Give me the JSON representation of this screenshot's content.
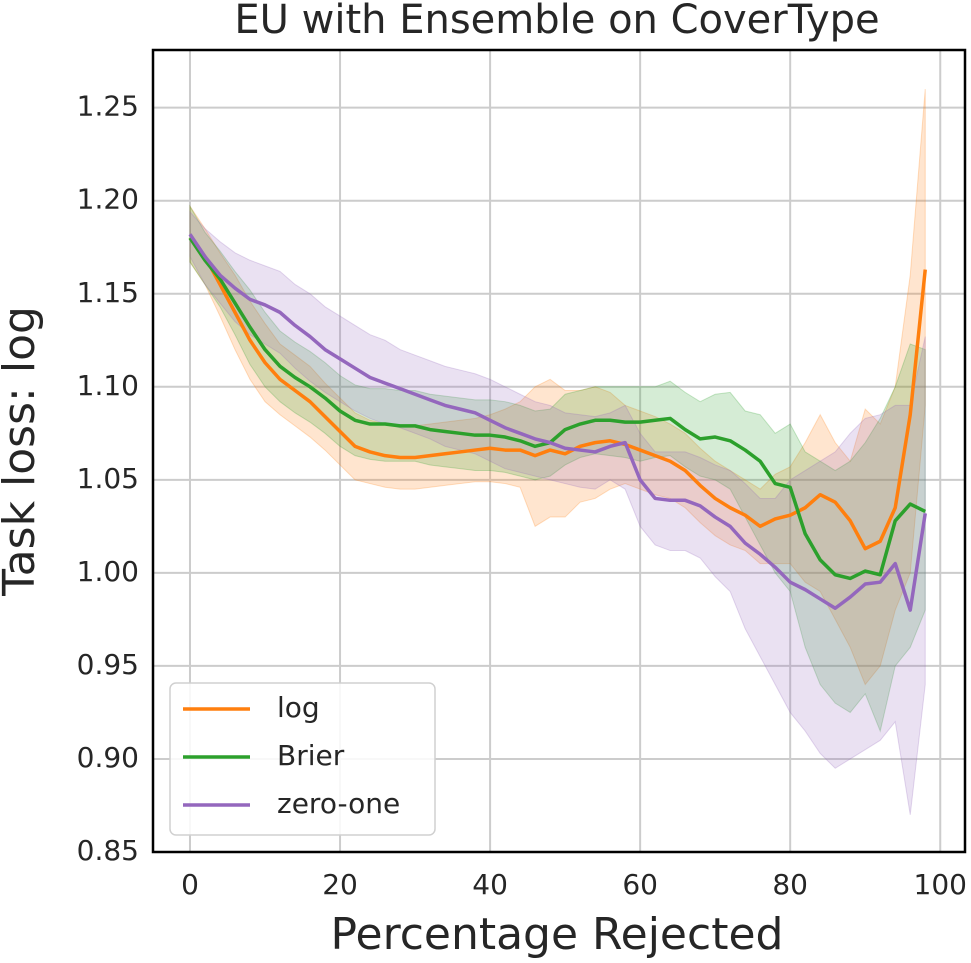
{
  "chart_data": {
    "type": "line",
    "title": "EU with Ensemble on CoverType",
    "xlabel": "Percentage Rejected",
    "ylabel": "Task loss: log",
    "xlim": [
      -4.93,
      103.3
    ],
    "ylim": [
      0.85,
      1.281
    ],
    "xticks": [
      0,
      20,
      40,
      60,
      80,
      100
    ],
    "yticks": [
      0.85,
      {
        "value": 0.9,
        "label": "0.90"
      },
      0.95,
      {
        "value": 1,
        "label": "1.00"
      },
      1.05,
      {
        "value": 1.1,
        "label": "1.10"
      },
      1.15,
      {
        "value": 1.2,
        "label": "1.20"
      },
      1.25
    ],
    "grid": true,
    "legend": "lower left",
    "x": [
      0,
      2,
      4,
      6,
      8,
      10,
      12,
      14,
      16,
      18,
      20,
      22,
      24,
      26,
      28,
      30,
      32,
      34,
      36,
      38,
      40,
      42,
      44,
      46,
      48,
      50,
      52,
      54,
      56,
      58,
      60,
      62,
      64,
      66,
      68,
      70,
      72,
      74,
      76,
      78,
      80,
      82,
      84,
      86,
      88,
      90,
      92,
      94,
      96,
      98
    ],
    "series": [
      {
        "name": "log",
        "color": "#ff7f0e",
        "values": [
          1.18,
          1.17,
          1.155,
          1.14,
          1.125,
          1.113,
          1.104,
          1.098,
          1.092,
          1.084,
          1.076,
          1.068,
          1.065,
          1.063,
          1.062,
          1.062,
          1.063,
          1.064,
          1.065,
          1.066,
          1.067,
          1.066,
          1.066,
          1.063,
          1.066,
          1.064,
          1.068,
          1.07,
          1.071,
          1.069,
          1.066,
          1.063,
          1.06,
          1.055,
          1.047,
          1.04,
          1.035,
          1.031,
          1.025,
          1.029,
          1.031,
          1.035,
          1.042,
          1.038,
          1.028,
          1.013,
          1.017,
          1.035,
          1.085,
          1.163
        ],
        "lower": [
          1.167,
          1.155,
          1.138,
          1.12,
          1.104,
          1.092,
          1.085,
          1.079,
          1.073,
          1.066,
          1.058,
          1.05,
          1.048,
          1.046,
          1.045,
          1.045,
          1.046,
          1.047,
          1.048,
          1.049,
          1.049,
          1.048,
          1.046,
          1.025,
          1.03,
          1.03,
          1.038,
          1.04,
          1.045,
          1.048,
          1.045,
          1.042,
          1.04,
          1.035,
          1.027,
          1.02,
          1.015,
          1.012,
          1.005,
          1.005,
          1.005,
          0.995,
          0.99,
          0.975,
          0.96,
          0.94,
          0.95,
          0.98,
          1.0,
          1.09
        ],
        "upper": [
          1.197,
          1.185,
          1.172,
          1.16,
          1.146,
          1.134,
          1.123,
          1.117,
          1.111,
          1.102,
          1.094,
          1.086,
          1.082,
          1.08,
          1.079,
          1.079,
          1.08,
          1.081,
          1.082,
          1.083,
          1.085,
          1.088,
          1.092,
          1.1,
          1.104,
          1.098,
          1.098,
          1.1,
          1.097,
          1.09,
          1.087,
          1.084,
          1.08,
          1.075,
          1.067,
          1.06,
          1.055,
          1.05,
          1.045,
          1.053,
          1.057,
          1.07,
          1.085,
          1.07,
          1.06,
          1.088,
          1.08,
          1.1,
          1.16,
          1.26
        ]
      },
      {
        "name": "Brier",
        "color": "#2ca02c",
        "values": [
          1.18,
          1.168,
          1.158,
          1.145,
          1.132,
          1.12,
          1.111,
          1.105,
          1.1,
          1.094,
          1.087,
          1.082,
          1.08,
          1.08,
          1.079,
          1.079,
          1.077,
          1.076,
          1.075,
          1.074,
          1.074,
          1.073,
          1.071,
          1.068,
          1.07,
          1.077,
          1.08,
          1.082,
          1.082,
          1.081,
          1.081,
          1.082,
          1.083,
          1.077,
          1.072,
          1.073,
          1.071,
          1.066,
          1.06,
          1.048,
          1.046,
          1.021,
          1.007,
          0.999,
          0.997,
          1.001,
          0.999,
          1.028,
          1.037,
          1.033
        ],
        "lower": [
          1.167,
          1.155,
          1.143,
          1.128,
          1.112,
          1.1,
          1.092,
          1.086,
          1.081,
          1.075,
          1.068,
          1.063,
          1.061,
          1.06,
          1.06,
          1.06,
          1.058,
          1.057,
          1.056,
          1.055,
          1.055,
          1.054,
          1.052,
          1.05,
          1.052,
          1.058,
          1.062,
          1.064,
          1.063,
          1.062,
          1.06,
          1.062,
          1.063,
          1.057,
          1.052,
          1.05,
          1.045,
          1.03,
          1.015,
          1.0,
          0.99,
          0.96,
          0.94,
          0.93,
          0.925,
          0.935,
          0.915,
          0.95,
          0.96,
          0.98
        ],
        "upper": [
          1.197,
          1.183,
          1.173,
          1.162,
          1.152,
          1.14,
          1.13,
          1.124,
          1.119,
          1.113,
          1.106,
          1.101,
          1.099,
          1.099,
          1.098,
          1.098,
          1.096,
          1.095,
          1.094,
          1.093,
          1.093,
          1.092,
          1.09,
          1.087,
          1.088,
          1.096,
          1.098,
          1.1,
          1.1,
          1.1,
          1.1,
          1.1,
          1.103,
          1.097,
          1.092,
          1.096,
          1.097,
          1.087,
          1.085,
          1.075,
          1.08,
          1.065,
          1.06,
          1.055,
          1.06,
          1.07,
          1.083,
          1.1,
          1.123,
          1.12
        ]
      },
      {
        "name": "zero-one",
        "color": "#9467bd",
        "values": [
          1.182,
          1.17,
          1.16,
          1.153,
          1.147,
          1.144,
          1.14,
          1.133,
          1.127,
          1.12,
          1.115,
          1.11,
          1.105,
          1.102,
          1.099,
          1.096,
          1.093,
          1.09,
          1.088,
          1.086,
          1.082,
          1.078,
          1.075,
          1.072,
          1.07,
          1.067,
          1.066,
          1.065,
          1.068,
          1.07,
          1.05,
          1.04,
          1.039,
          1.039,
          1.036,
          1.03,
          1.025,
          1.016,
          1.01,
          1.003,
          0.995,
          0.991,
          0.986,
          0.981,
          0.987,
          0.994,
          0.995,
          1.005,
          0.98,
          1.032
        ],
        "lower": [
          1.17,
          1.155,
          1.145,
          1.135,
          1.128,
          1.123,
          1.118,
          1.11,
          1.103,
          1.097,
          1.092,
          1.087,
          1.083,
          1.08,
          1.078,
          1.075,
          1.072,
          1.068,
          1.066,
          1.064,
          1.06,
          1.056,
          1.054,
          1.052,
          1.05,
          1.048,
          1.046,
          1.045,
          1.05,
          1.045,
          1.025,
          1.015,
          1.012,
          1.012,
          1.008,
          0.998,
          0.99,
          0.97,
          0.955,
          0.94,
          0.925,
          0.915,
          0.903,
          0.895,
          0.9,
          0.905,
          0.91,
          0.92,
          0.87,
          0.94
        ],
        "upper": [
          1.194,
          1.185,
          1.178,
          1.172,
          1.168,
          1.165,
          1.162,
          1.155,
          1.15,
          1.143,
          1.138,
          1.133,
          1.128,
          1.125,
          1.12,
          1.117,
          1.114,
          1.111,
          1.109,
          1.107,
          1.104,
          1.1,
          1.096,
          1.092,
          1.09,
          1.086,
          1.085,
          1.084,
          1.086,
          1.09,
          1.075,
          1.065,
          1.065,
          1.065,
          1.062,
          1.058,
          1.055,
          1.048,
          1.04,
          1.04,
          1.05,
          1.055,
          1.06,
          1.065,
          1.075,
          1.083,
          1.085,
          1.09,
          1.09,
          1.127
        ]
      }
    ]
  }
}
